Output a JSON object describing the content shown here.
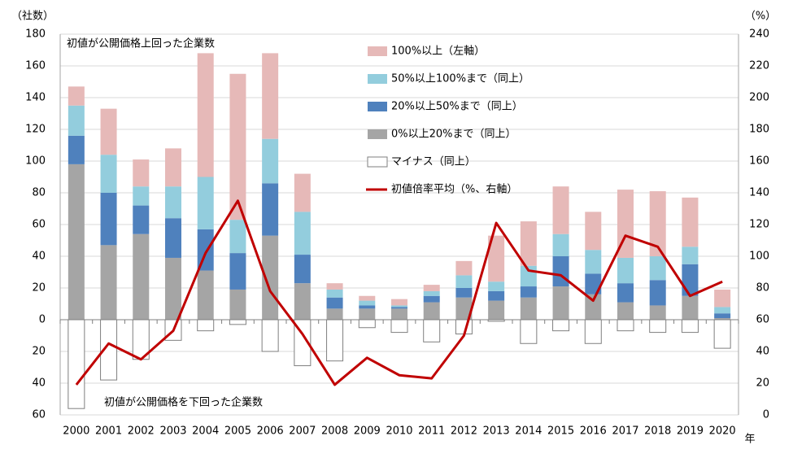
{
  "chart_data": {
    "type": "bar",
    "annotations": [
      "初値が公開価格上回った企業数",
      "初値が公開価格を下回った企業数"
    ],
    "y_label": "（社数）",
    "y2_label": "（%）",
    "x_label": "年",
    "categories": [
      "2000",
      "2001",
      "2002",
      "2003",
      "2004",
      "2005",
      "2006",
      "2007",
      "2008",
      "2009",
      "2010",
      "2011",
      "2012",
      "2013",
      "2014",
      "2015",
      "2016",
      "2017",
      "2018",
      "2019",
      "2020"
    ],
    "series": [
      {
        "name": "100%以上（左軸）",
        "color": "#e6b9b8",
        "values": [
          12,
          29,
          17,
          24,
          78,
          92,
          54,
          24,
          4,
          3,
          4,
          4,
          9,
          29,
          28,
          30,
          24,
          43,
          41,
          31,
          11
        ]
      },
      {
        "name": "50%以上100%まで（同上）",
        "color": "#93cddd",
        "values": [
          19,
          24,
          12,
          20,
          33,
          21,
          28,
          27,
          5,
          3,
          1,
          3,
          8,
          6,
          13,
          14,
          15,
          16,
          15,
          11,
          4
        ]
      },
      {
        "name": "20%以上50%まで（同上）",
        "color": "#4f81bd",
        "values": [
          18,
          33,
          18,
          25,
          26,
          23,
          33,
          18,
          7,
          2,
          1,
          4,
          6,
          6,
          7,
          19,
          13,
          12,
          16,
          20,
          3
        ]
      },
      {
        "name": "0%以上20%まで（同上）",
        "color": "#a5a5a5",
        "values": [
          98,
          47,
          54,
          39,
          31,
          19,
          53,
          23,
          7,
          7,
          7,
          11,
          14,
          12,
          14,
          21,
          16,
          11,
          9,
          15,
          1
        ]
      },
      {
        "name": "マイナス（同上）",
        "color": "#ffffff",
        "values": [
          -56,
          -38,
          -25,
          -13,
          -7,
          -3,
          -20,
          -29,
          -26,
          -5,
          -8,
          -14,
          -9,
          -1,
          -15,
          -7,
          -15,
          -7,
          -8,
          -8,
          -18
        ]
      },
      {
        "name": "初値倍率平均（%、右軸）",
        "color": "#c00000",
        "type": "line",
        "axis": "y2",
        "values": [
          19,
          45,
          35,
          53,
          102,
          135,
          78,
          51,
          19,
          36,
          25,
          23,
          50,
          121,
          91,
          88,
          72,
          113,
          106,
          75,
          84
        ]
      }
    ],
    "ylim": [
      -60,
      180
    ],
    "yticks": [
      {
        "value": -60,
        "label": "60"
      },
      {
        "value": -40,
        "label": "40"
      },
      {
        "value": -20,
        "label": "20"
      },
      0,
      20,
      40,
      60,
      80,
      100,
      120,
      140,
      160,
      180
    ],
    "y2lim": [
      0,
      240
    ],
    "y2ticks": [
      0,
      20,
      40,
      60,
      80,
      100,
      120,
      140,
      160,
      180,
      200,
      220,
      240
    ],
    "grid": true
  }
}
